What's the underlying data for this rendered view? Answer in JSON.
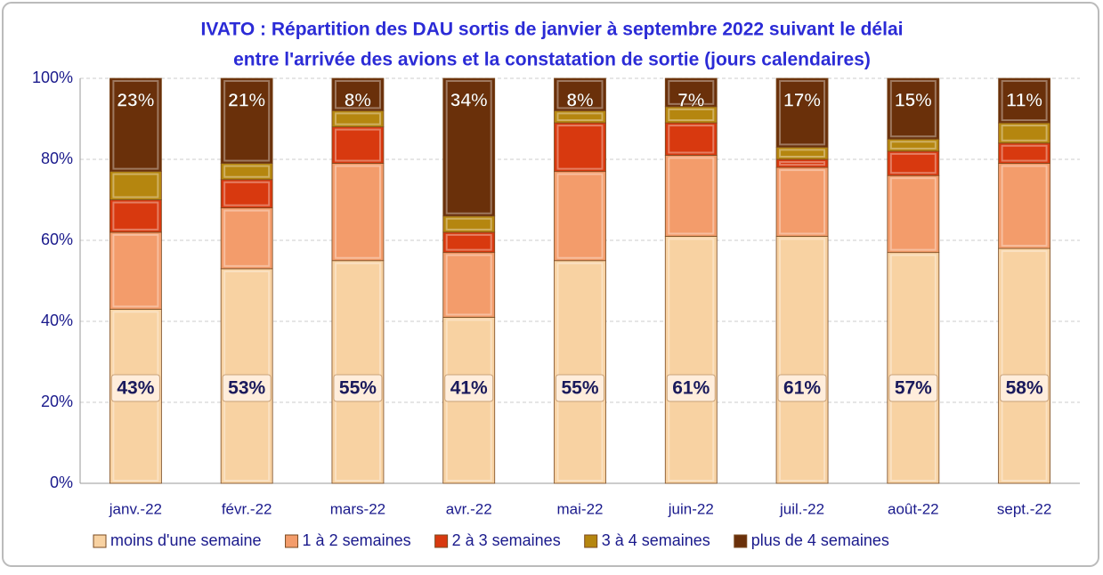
{
  "chart_data": {
    "type": "stacked_bar",
    "title": [
      "IVATO : Répartition des DAU sortis de janvier à septembre 2022 suivant le délai",
      "entre l'arrivée des avions et la constatation de sortie (jours calendaires)"
    ],
    "categories": [
      "janv.-22",
      "févr.-22",
      "mars-22",
      "avr.-22",
      "mai-22",
      "juin-22",
      "juil.-22",
      "août-22",
      "sept.-22"
    ],
    "series": [
      {
        "name": "moins d'une semaine",
        "color": "#f8d2a2",
        "values": [
          43,
          53,
          55,
          41,
          55,
          61,
          61,
          57,
          58
        ],
        "value_labels": [
          "43%",
          "53%",
          "55%",
          "41%",
          "55%",
          "61%",
          "61%",
          "57%",
          "58%"
        ]
      },
      {
        "name": "1 à 2 semaines",
        "color": "#f39c6b",
        "values": [
          19,
          15,
          24,
          16,
          22,
          20,
          17,
          19,
          21
        ]
      },
      {
        "name": "2 à 3 semaines",
        "color": "#d8390f",
        "values": [
          8,
          7,
          9,
          5,
          12,
          8,
          2,
          6,
          5
        ]
      },
      {
        "name": "3 à 4 semaines",
        "color": "#b5860f",
        "values": [
          7,
          4,
          4,
          4,
          3,
          4,
          3,
          3,
          5
        ]
      },
      {
        "name": "plus de 4 semaines",
        "color": "#6a300a",
        "values": [
          23,
          21,
          8,
          34,
          8,
          7,
          17,
          15,
          11
        ],
        "value_labels": [
          "23%",
          "21%",
          "8%",
          "34%",
          "8%",
          "7%",
          "17%",
          "15%",
          "11%"
        ]
      }
    ],
    "ylim": [
      0,
      100
    ],
    "yticks": [
      {
        "value": 0,
        "label": "0%"
      },
      {
        "value": 20,
        "label": "20%"
      },
      {
        "value": 40,
        "label": "40%"
      },
      {
        "value": 60,
        "label": "60%"
      },
      {
        "value": 80,
        "label": "80%"
      },
      {
        "value": 100,
        "label": "100%"
      }
    ],
    "grid": true,
    "legend": "bottom"
  }
}
